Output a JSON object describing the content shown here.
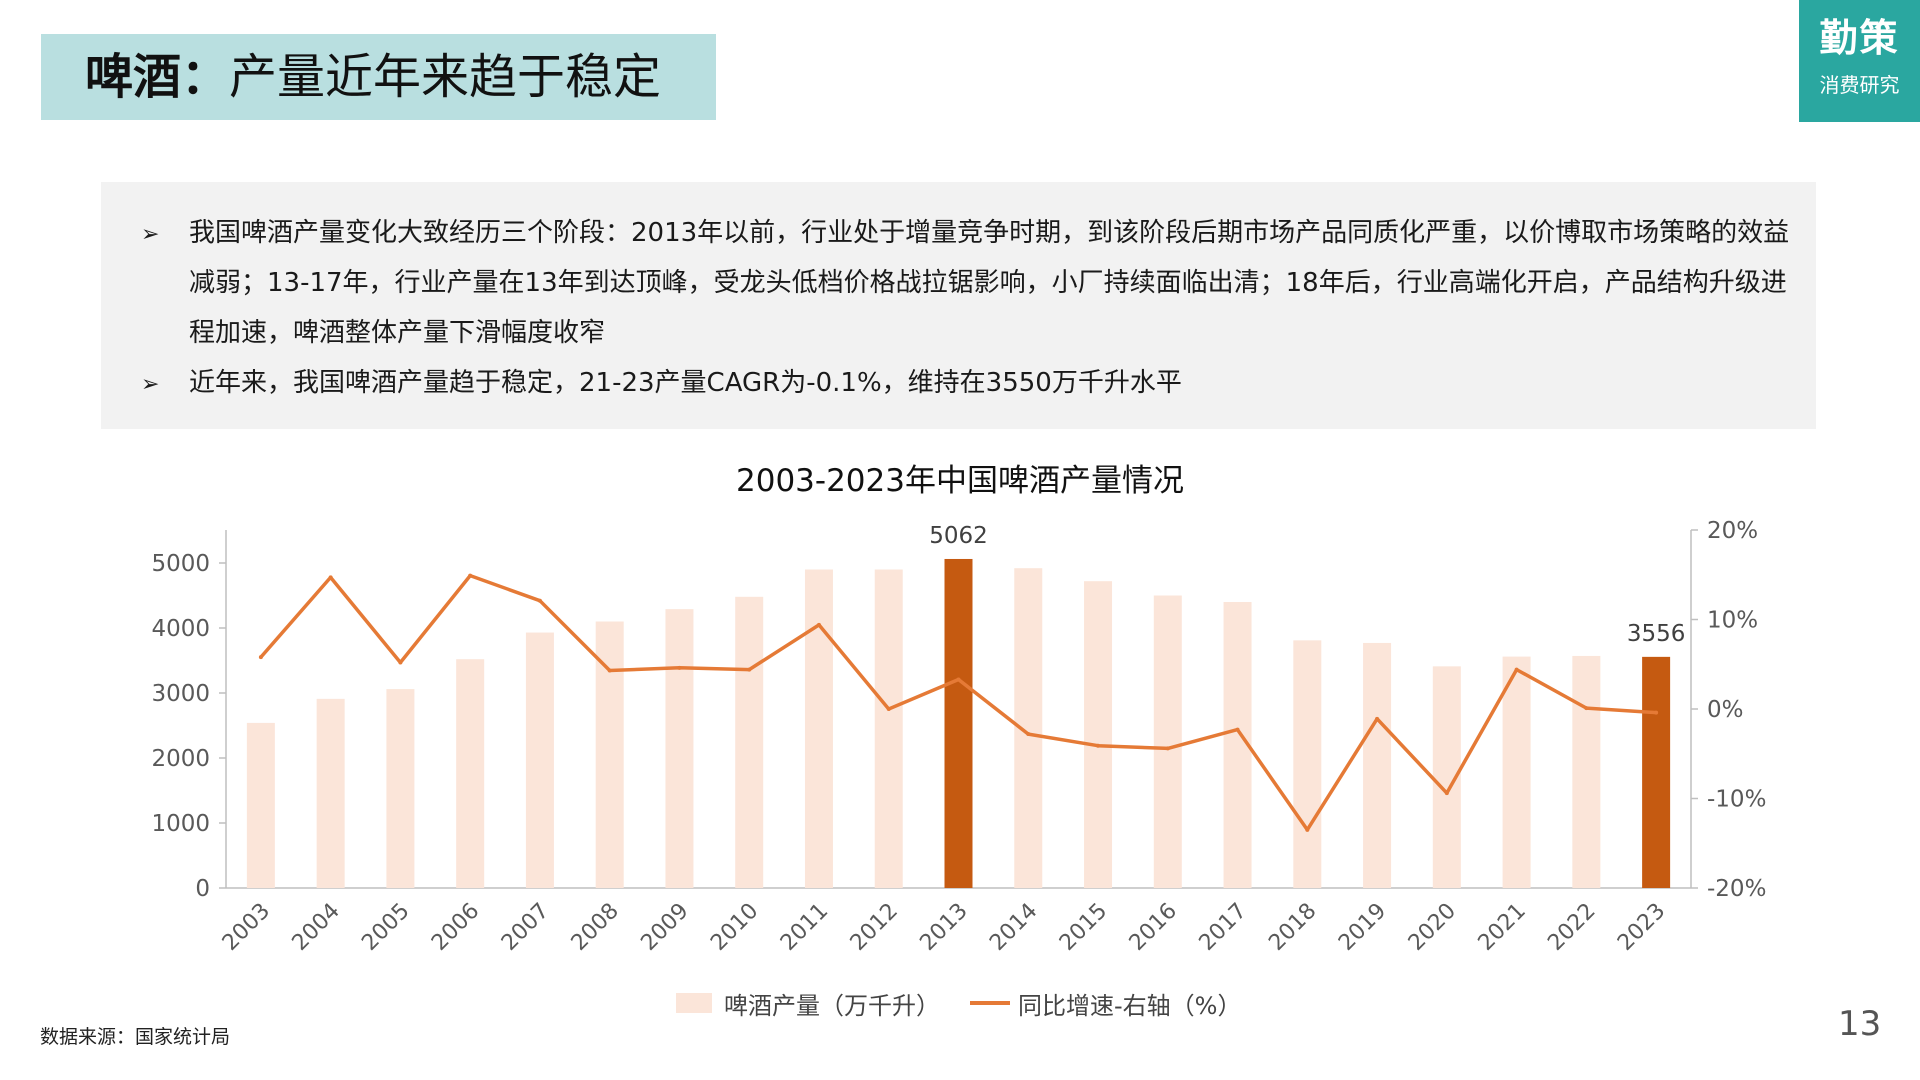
{
  "header": {
    "title_bold": "啤酒：",
    "title_rest": "产量近年来趋于稳定"
  },
  "logo": {
    "main": "勤策",
    "sub": "消费研究"
  },
  "notes": [
    {
      "bullet": "➢",
      "text": "我国啤酒产量变化大致经历三个阶段：2013年以前，行业处于增量竞争时期，到该阶段后期市场产品同质化严重，以价博取市场策略的效益减弱；13-17年，行业产量在13年到达顶峰，受龙头低档价格战拉锯影响，小厂持续面临出清；18年后，行业高端化开启，产品结构升级进程加速，啤酒整体产量下滑幅度收窄"
    },
    {
      "bullet": "➢",
      "text": "近年来，我国啤酒产量趋于稳定，21-23产量CAGR为-0.1%，维持在3550万千升水平"
    }
  ],
  "chart_data": {
    "type": "bar",
    "title": "2003-2023年中国啤酒产量情况",
    "categories": [
      "2003",
      "2004",
      "2005",
      "2006",
      "2007",
      "2008",
      "2009",
      "2010",
      "2011",
      "2012",
      "2013",
      "2014",
      "2015",
      "2016",
      "2017",
      "2018",
      "2019",
      "2020",
      "2021",
      "2022",
      "2023"
    ],
    "series": [
      {
        "name": "啤酒产量（万千升）",
        "type": "bar",
        "axis": "left",
        "values": [
          2540,
          2910,
          3060,
          3520,
          3930,
          4100,
          4290,
          4480,
          4900,
          4900,
          5062,
          4920,
          4720,
          4500,
          4400,
          3810,
          3770,
          3410,
          3560,
          3570,
          3556
        ],
        "highlight": [
          "2013",
          "2023"
        ]
      },
      {
        "name": "同比增速-右轴（%）",
        "type": "line",
        "axis": "right",
        "values": [
          5.8,
          14.7,
          5.2,
          14.9,
          12.1,
          4.3,
          4.6,
          4.4,
          9.4,
          0.0,
          3.3,
          -2.8,
          -4.1,
          -4.4,
          -2.3,
          -13.5,
          -1.1,
          -9.4,
          4.4,
          0.1,
          -0.4
        ]
      }
    ],
    "data_labels": [
      {
        "category": "2013",
        "text": "5062"
      },
      {
        "category": "2023",
        "text": "3556"
      }
    ],
    "y_left": {
      "ylim": [
        0,
        5000
      ],
      "ticks": [
        "0",
        "1000",
        "2000",
        "3000",
        "4000",
        "5000"
      ]
    },
    "y_right": {
      "ylim": [
        -20,
        20
      ],
      "ticks": [
        "-20%",
        "-10%",
        "0%",
        "10%",
        "20%"
      ]
    },
    "colors": {
      "bar": "#fbe5d9",
      "bar_highlight": "#c55a11",
      "line": "#e57a36",
      "axis": "#bfbfbf",
      "tick_text": "#595959"
    },
    "grid": false,
    "legend_position": "bottom"
  },
  "footer": {
    "source": "数据来源：国家统计局",
    "page": "13"
  }
}
